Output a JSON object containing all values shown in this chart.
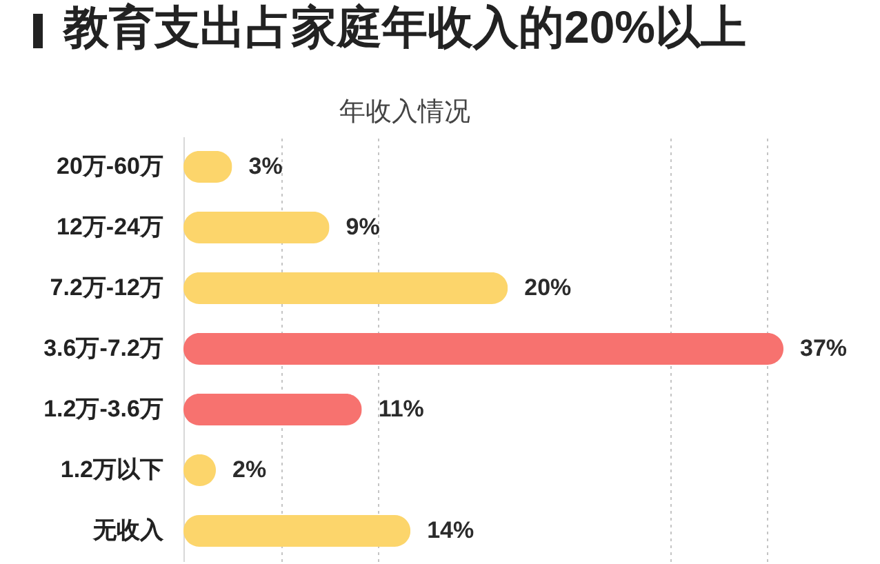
{
  "chart_data": {
    "type": "bar",
    "orientation": "horizontal",
    "title": "教育支出占家庭年收入的20%以上",
    "subtitle": "年收入情况",
    "categories": [
      "20万-60万",
      "12万-24万",
      "7.2万-12万",
      "3.6万-7.2万",
      "1.2万-3.6万",
      "1.2万以下",
      "无收入"
    ],
    "values": [
      3,
      9,
      20,
      37,
      11,
      2,
      14
    ],
    "value_labels": [
      "3%",
      "9%",
      "20%",
      "37%",
      "11%",
      "2%",
      "14%"
    ],
    "colors": [
      "#fcd56b",
      "#fcd56b",
      "#fcd56b",
      "#f7726f",
      "#f7726f",
      "#fcd56b",
      "#fcd56b"
    ],
    "xticks": [
      {
        "value": 6,
        "label": null
      },
      {
        "value": 12,
        "label": null
      },
      {
        "value": 30,
        "label": null
      },
      {
        "value": 36,
        "label": null
      }
    ],
    "grid": "x",
    "tick_labels": "y"
  }
}
